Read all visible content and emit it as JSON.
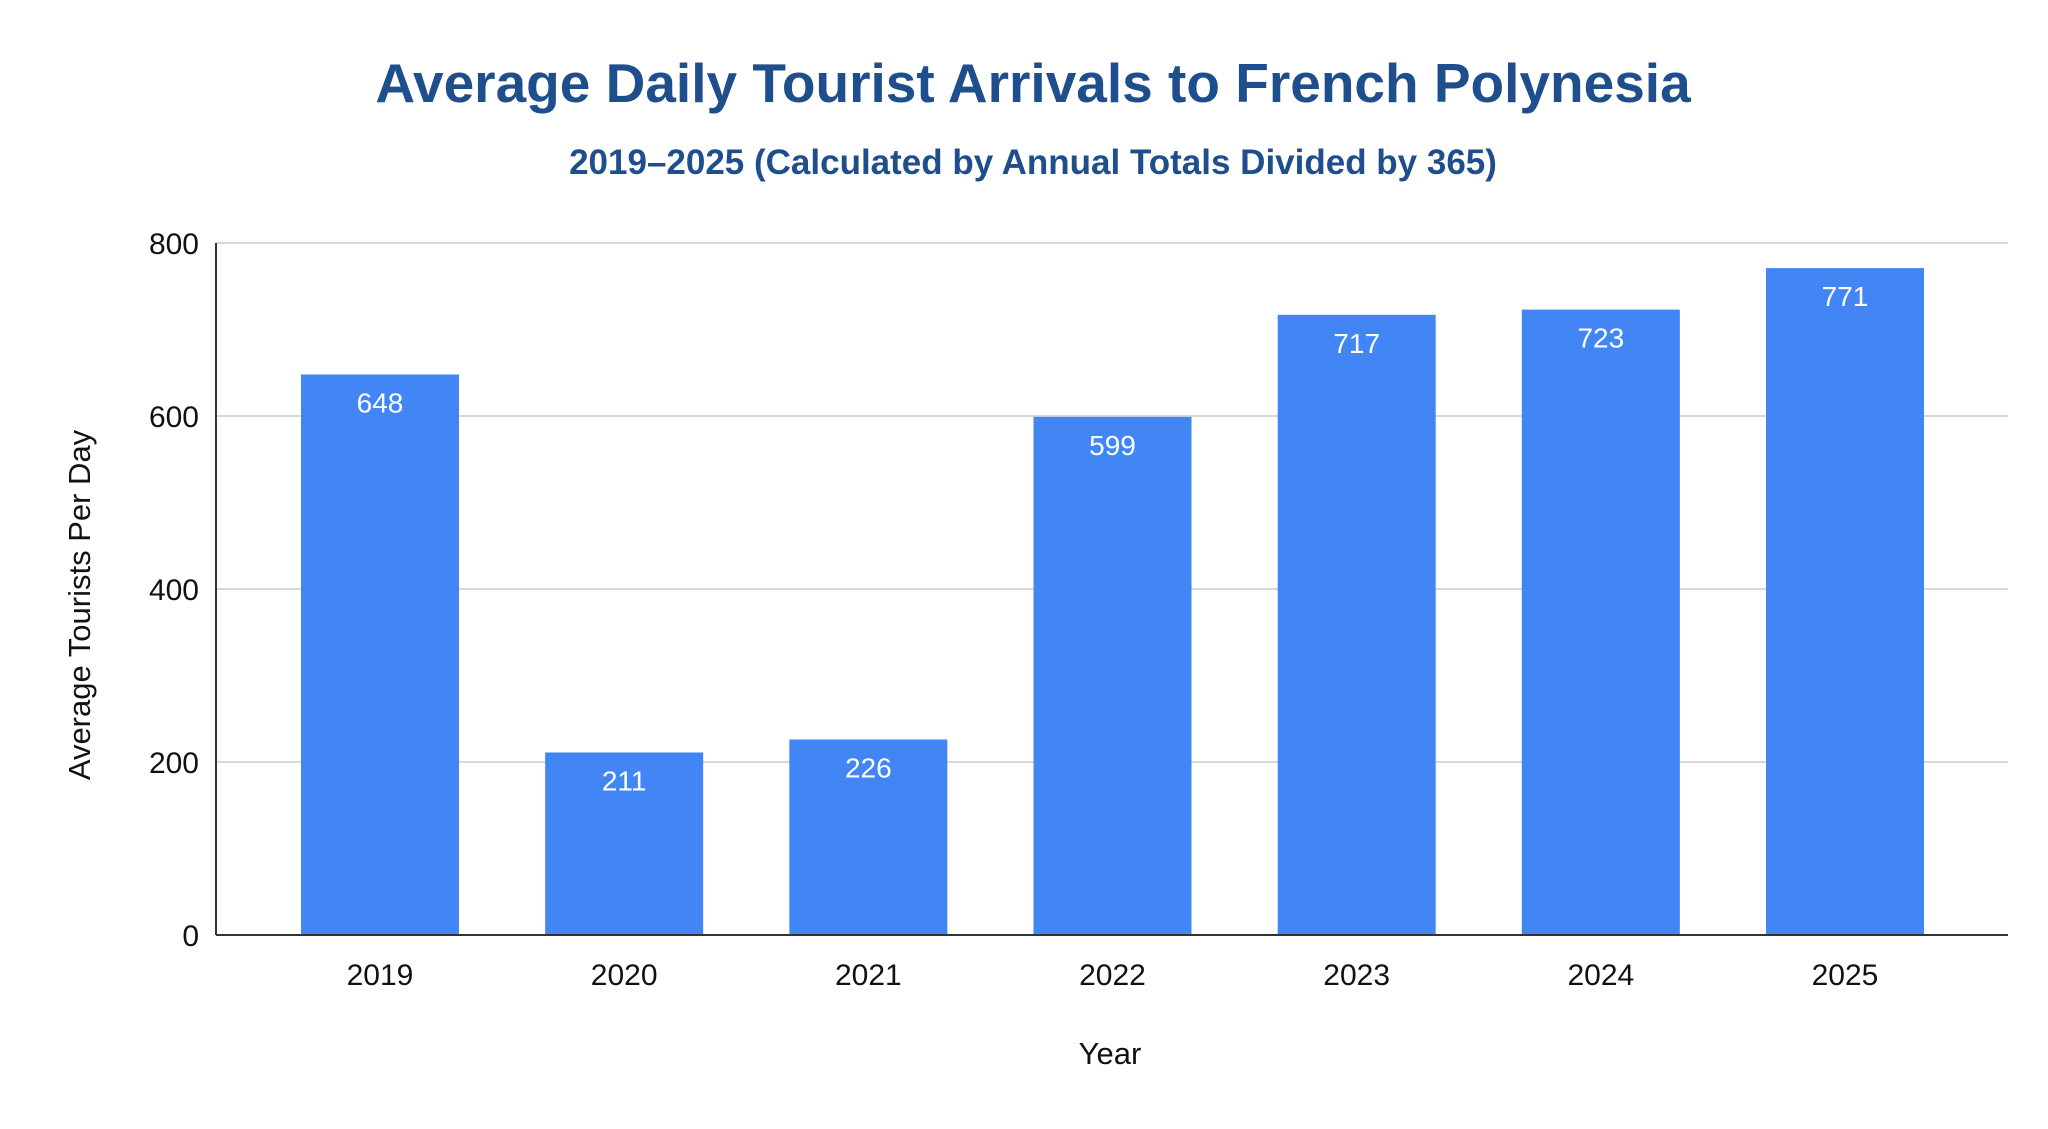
{
  "chart_data": {
    "type": "bar",
    "title": "Average Daily Tourist Arrivals to French Polynesia",
    "subtitle": "2019–2025 (Calculated by Annual Totals Divided by 365)",
    "xlabel": "Year",
    "ylabel": "Average Tourists Per Day",
    "categories": [
      "2019",
      "2020",
      "2021",
      "2022",
      "2023",
      "2024",
      "2025"
    ],
    "values": [
      648,
      211,
      226,
      599,
      717,
      723,
      771
    ],
    "data_labels": [
      "648",
      "211",
      "226",
      "599",
      "717",
      "723",
      "771"
    ],
    "ylim": [
      0,
      800
    ],
    "yticks": [
      0,
      200,
      400,
      600,
      800
    ],
    "ytick_labels": [
      "0",
      "200",
      "400",
      "600",
      "800"
    ],
    "grid": "horizontal",
    "legend": "none"
  },
  "colors": {
    "bar": "#4285F4",
    "title": "#1F4E8C",
    "subtitle": "#1F4E8C",
    "gridline": "#CCCCCC",
    "axis": "#333333",
    "tick_text": "#111111",
    "data_label": "#FFFFFF"
  }
}
